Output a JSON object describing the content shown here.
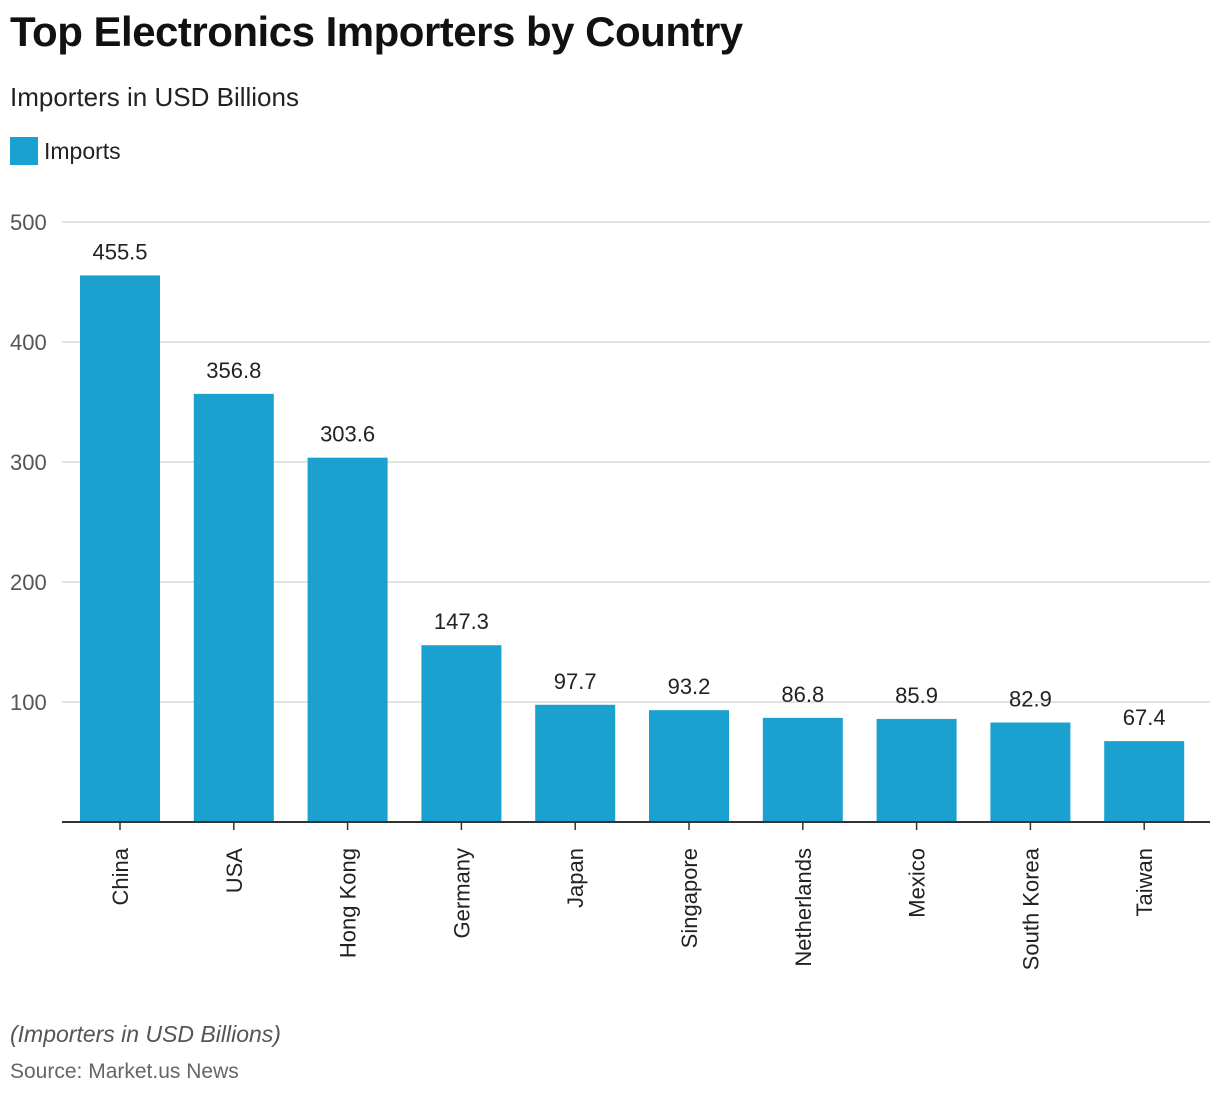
{
  "chart_data": {
    "type": "bar",
    "title": "Top Electronics Importers by Country",
    "subtitle": "Importers in USD Billions",
    "legend": [
      {
        "label": "Imports",
        "color": "#1aa1cf"
      }
    ],
    "categories": [
      "China",
      "USA",
      "Hong Kong",
      "Germany",
      "Japan",
      "Singapore",
      "Netherlands",
      "Mexico",
      "South Korea",
      "Taiwan"
    ],
    "series": [
      {
        "name": "Imports",
        "values": [
          455.5,
          356.8,
          303.6,
          147.3,
          97.7,
          93.2,
          86.8,
          85.9,
          82.9,
          67.4
        ]
      }
    ],
    "value_labels": [
      "455.5",
      "356.8",
      "303.6",
      "147.3",
      "97.7",
      "93.2",
      "86.8",
      "85.9",
      "82.9",
      "67.4"
    ],
    "ylim": [
      0,
      500
    ],
    "yticks": [
      100,
      200,
      300,
      400,
      500
    ],
    "ytick_labels": [
      "100",
      "200",
      "300",
      "400",
      "500"
    ],
    "xlabel": "",
    "ylabel": "",
    "grid": true,
    "legend_position": "top-left"
  },
  "footnote": "(Importers in USD Billions)",
  "source": "Source: Market.us News",
  "colors": {
    "bar": "#1aa1cf",
    "grid": "#d9d9d9",
    "axis": "#333333"
  }
}
